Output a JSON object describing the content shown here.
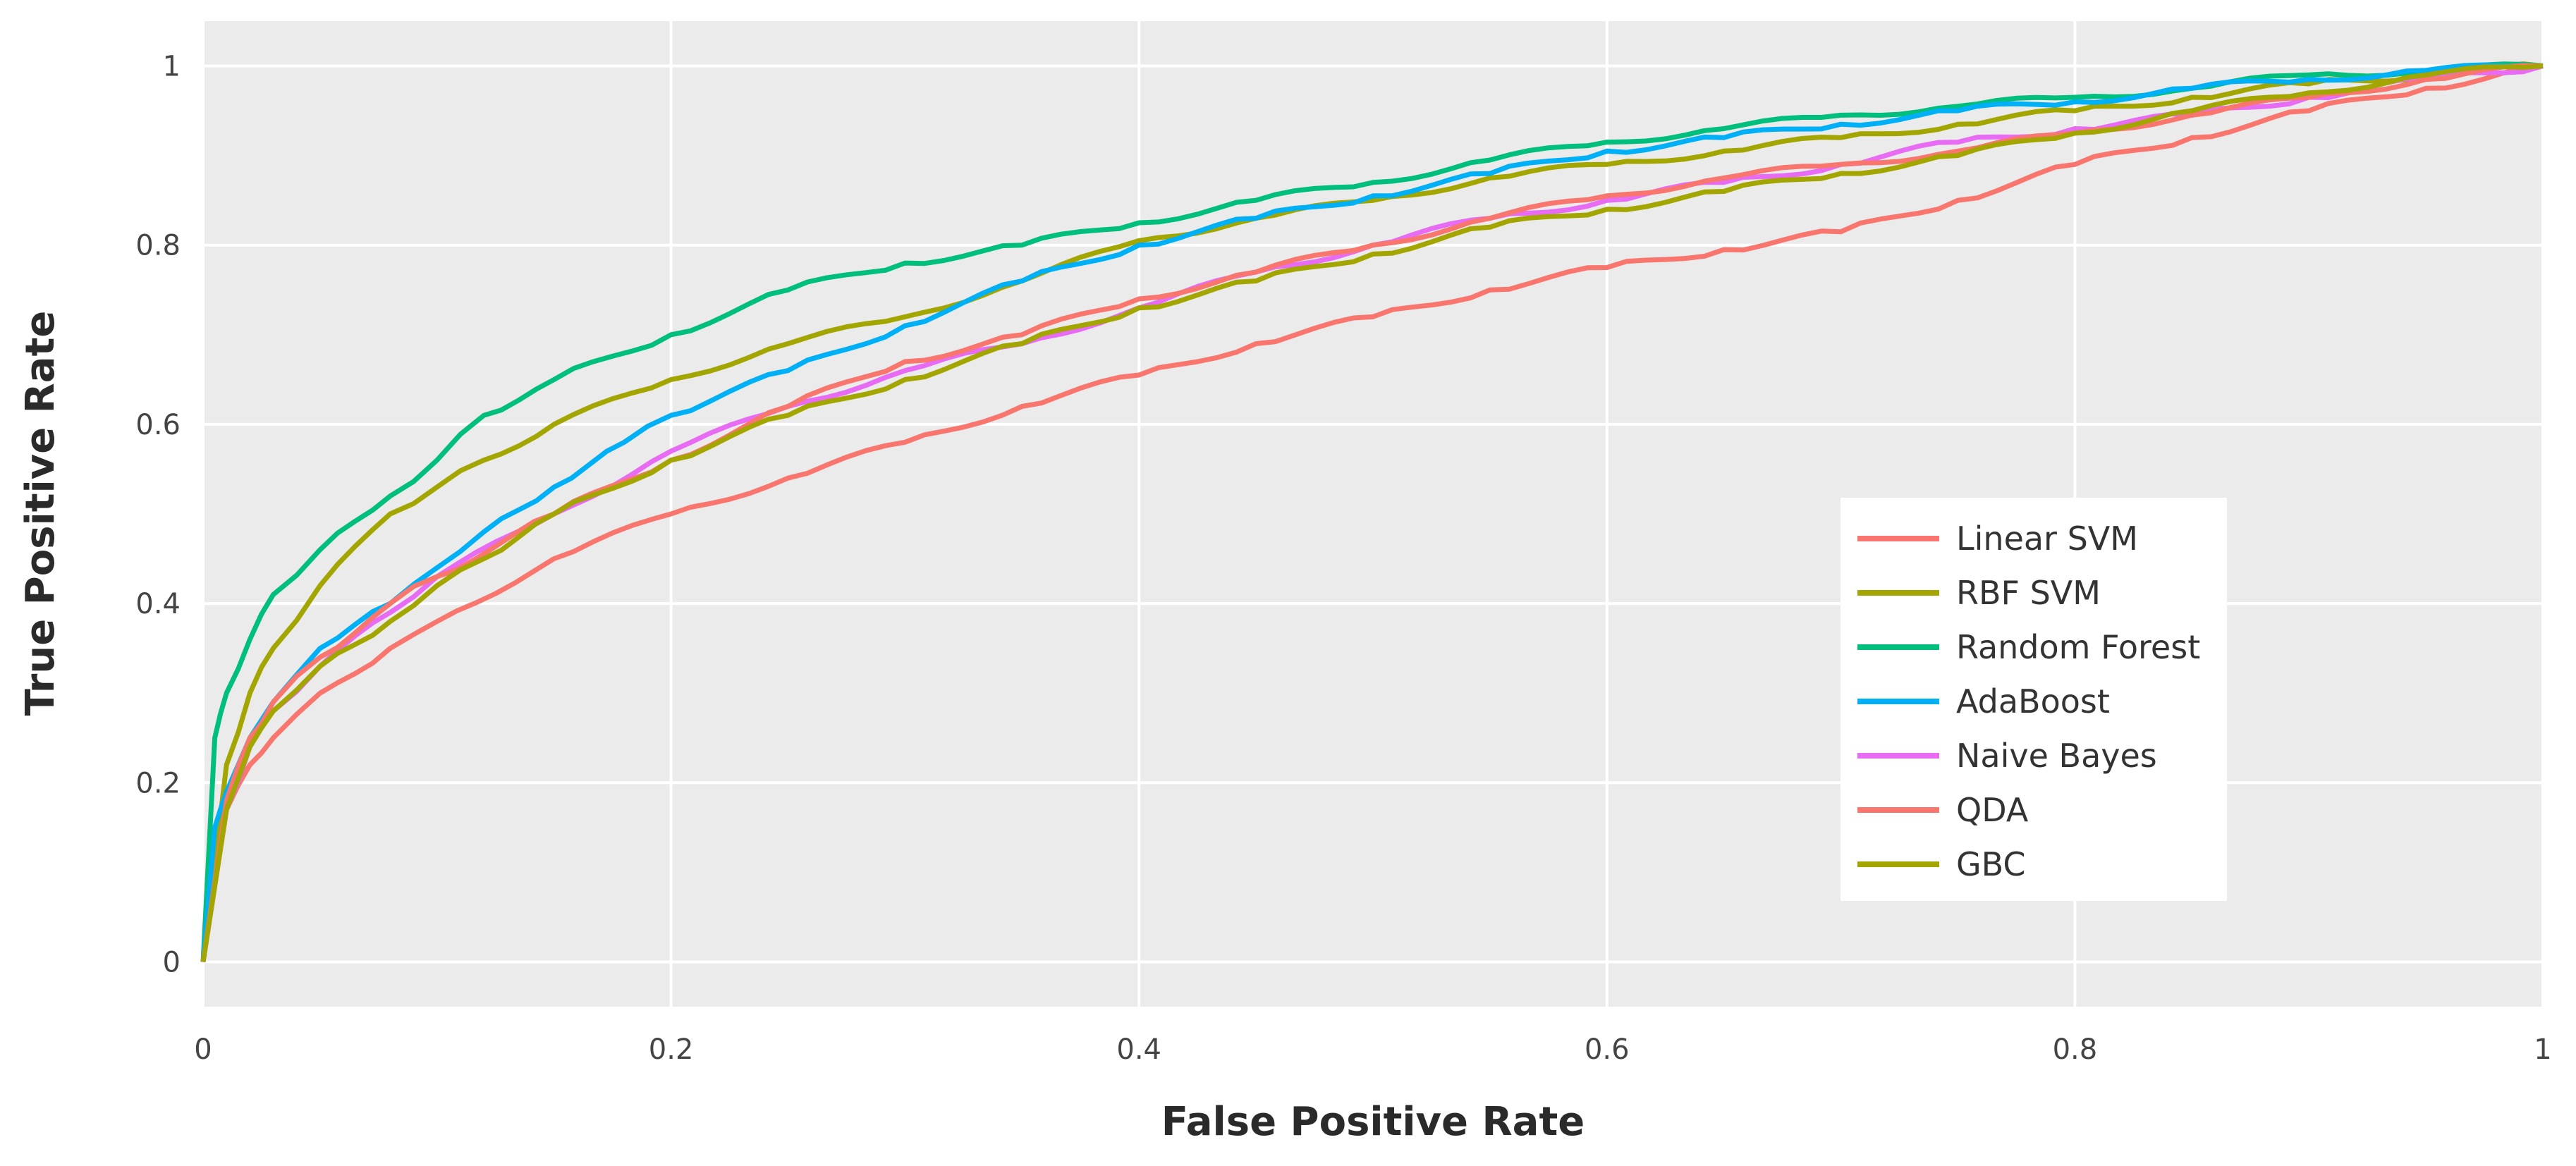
{
  "chart_data": {
    "type": "line",
    "title": "",
    "xlabel": "False Positive Rate",
    "ylabel": "True Positive Rate",
    "xlim": [
      0,
      1
    ],
    "ylim": [
      -0.05,
      1.05
    ],
    "xticks": [
      0,
      0.2,
      0.4,
      0.6,
      0.8,
      1
    ],
    "xtick_labels": [
      "0",
      "0.2",
      "0.4",
      "0.6",
      "0.8",
      "1"
    ],
    "yticks": [
      0,
      0.2,
      0.4,
      0.6,
      0.8,
      1
    ],
    "ytick_labels": [
      "0",
      "0.2",
      "0.4",
      "0.6",
      "0.8",
      "1"
    ],
    "grid": true,
    "legend_position": "right-center",
    "series": [
      {
        "name": "Linear SVM",
        "color": "#F8766D",
        "x": [
          0,
          0.01,
          0.02,
          0.03,
          0.05,
          0.08,
          0.1,
          0.15,
          0.2,
          0.25,
          0.3,
          0.35,
          0.4,
          0.45,
          0.5,
          0.55,
          0.6,
          0.65,
          0.7,
          0.75,
          0.8,
          0.85,
          0.9,
          0.95,
          1
        ],
        "y": [
          0,
          0.17,
          0.22,
          0.25,
          0.3,
          0.35,
          0.38,
          0.45,
          0.5,
          0.54,
          0.58,
          0.62,
          0.655,
          0.69,
          0.72,
          0.75,
          0.775,
          0.795,
          0.815,
          0.85,
          0.89,
          0.92,
          0.95,
          0.975,
          1
        ]
      },
      {
        "name": "RBF SVM",
        "color": "#A3A500",
        "x": [
          0,
          0.01,
          0.02,
          0.03,
          0.05,
          0.08,
          0.1,
          0.12,
          0.15,
          0.2,
          0.25,
          0.3,
          0.35,
          0.4,
          0.45,
          0.5,
          0.55,
          0.6,
          0.65,
          0.7,
          0.75,
          0.8,
          0.85,
          0.9,
          0.95,
          1
        ],
        "y": [
          0,
          0.22,
          0.3,
          0.35,
          0.42,
          0.5,
          0.53,
          0.56,
          0.6,
          0.65,
          0.69,
          0.72,
          0.76,
          0.805,
          0.83,
          0.85,
          0.875,
          0.89,
          0.905,
          0.92,
          0.935,
          0.95,
          0.965,
          0.98,
          0.99,
          1
        ]
      },
      {
        "name": "Random Forest",
        "color": "#00BF7D",
        "x": [
          0,
          0.005,
          0.01,
          0.02,
          0.03,
          0.05,
          0.08,
          0.1,
          0.12,
          0.15,
          0.2,
          0.25,
          0.3,
          0.35,
          0.4,
          0.45,
          0.5,
          0.55,
          0.6,
          0.65,
          0.7,
          0.75,
          0.8,
          0.85,
          0.9,
          0.95,
          1
        ],
        "y": [
          0,
          0.25,
          0.3,
          0.36,
          0.41,
          0.46,
          0.52,
          0.56,
          0.61,
          0.65,
          0.7,
          0.75,
          0.78,
          0.8,
          0.825,
          0.85,
          0.87,
          0.895,
          0.915,
          0.93,
          0.945,
          0.955,
          0.965,
          0.975,
          0.99,
          0.995,
          1
        ]
      },
      {
        "name": "AdaBoost",
        "color": "#00B0F6",
        "x": [
          0,
          0.005,
          0.01,
          0.02,
          0.03,
          0.05,
          0.08,
          0.1,
          0.12,
          0.15,
          0.18,
          0.2,
          0.25,
          0.3,
          0.35,
          0.4,
          0.45,
          0.5,
          0.55,
          0.6,
          0.65,
          0.7,
          0.75,
          0.8,
          0.85,
          0.9,
          0.95,
          1
        ],
        "y": [
          0,
          0.15,
          0.19,
          0.25,
          0.29,
          0.35,
          0.4,
          0.44,
          0.48,
          0.53,
          0.58,
          0.61,
          0.66,
          0.71,
          0.76,
          0.8,
          0.83,
          0.855,
          0.88,
          0.905,
          0.92,
          0.935,
          0.95,
          0.96,
          0.975,
          0.985,
          0.995,
          1
        ]
      },
      {
        "name": "Naive Bayes",
        "color": "#E76BF3",
        "x": [
          0,
          0.01,
          0.02,
          0.03,
          0.05,
          0.08,
          0.1,
          0.15,
          0.2,
          0.25,
          0.3,
          0.35,
          0.4,
          0.45,
          0.5,
          0.55,
          0.6,
          0.65,
          0.7,
          0.75,
          0.8,
          0.85,
          0.9,
          0.95,
          1
        ],
        "y": [
          0,
          0.17,
          0.24,
          0.28,
          0.33,
          0.39,
          0.43,
          0.5,
          0.57,
          0.62,
          0.66,
          0.69,
          0.73,
          0.77,
          0.8,
          0.83,
          0.85,
          0.87,
          0.89,
          0.915,
          0.93,
          0.945,
          0.965,
          0.985,
          1
        ]
      },
      {
        "name": "QDA",
        "color": "#F8766D",
        "x": [
          0,
          0.01,
          0.02,
          0.03,
          0.05,
          0.08,
          0.1,
          0.15,
          0.2,
          0.25,
          0.3,
          0.35,
          0.4,
          0.45,
          0.5,
          0.55,
          0.6,
          0.65,
          0.7,
          0.75,
          0.8,
          0.85,
          0.9,
          0.95,
          1
        ],
        "y": [
          0,
          0.18,
          0.25,
          0.29,
          0.34,
          0.4,
          0.43,
          0.5,
          0.56,
          0.62,
          0.67,
          0.7,
          0.74,
          0.77,
          0.8,
          0.83,
          0.855,
          0.875,
          0.89,
          0.905,
          0.925,
          0.945,
          0.965,
          0.985,
          1
        ]
      },
      {
        "name": "GBC",
        "color": "#A3A500",
        "x": [
          0,
          0.01,
          0.02,
          0.03,
          0.05,
          0.08,
          0.1,
          0.12,
          0.15,
          0.2,
          0.25,
          0.3,
          0.35,
          0.4,
          0.45,
          0.5,
          0.55,
          0.6,
          0.65,
          0.7,
          0.75,
          0.8,
          0.85,
          0.9,
          0.95,
          1
        ],
        "y": [
          0,
          0.17,
          0.24,
          0.28,
          0.33,
          0.38,
          0.42,
          0.45,
          0.5,
          0.56,
          0.61,
          0.65,
          0.69,
          0.73,
          0.76,
          0.79,
          0.82,
          0.84,
          0.86,
          0.88,
          0.9,
          0.925,
          0.95,
          0.97,
          0.99,
          1
        ]
      }
    ]
  }
}
